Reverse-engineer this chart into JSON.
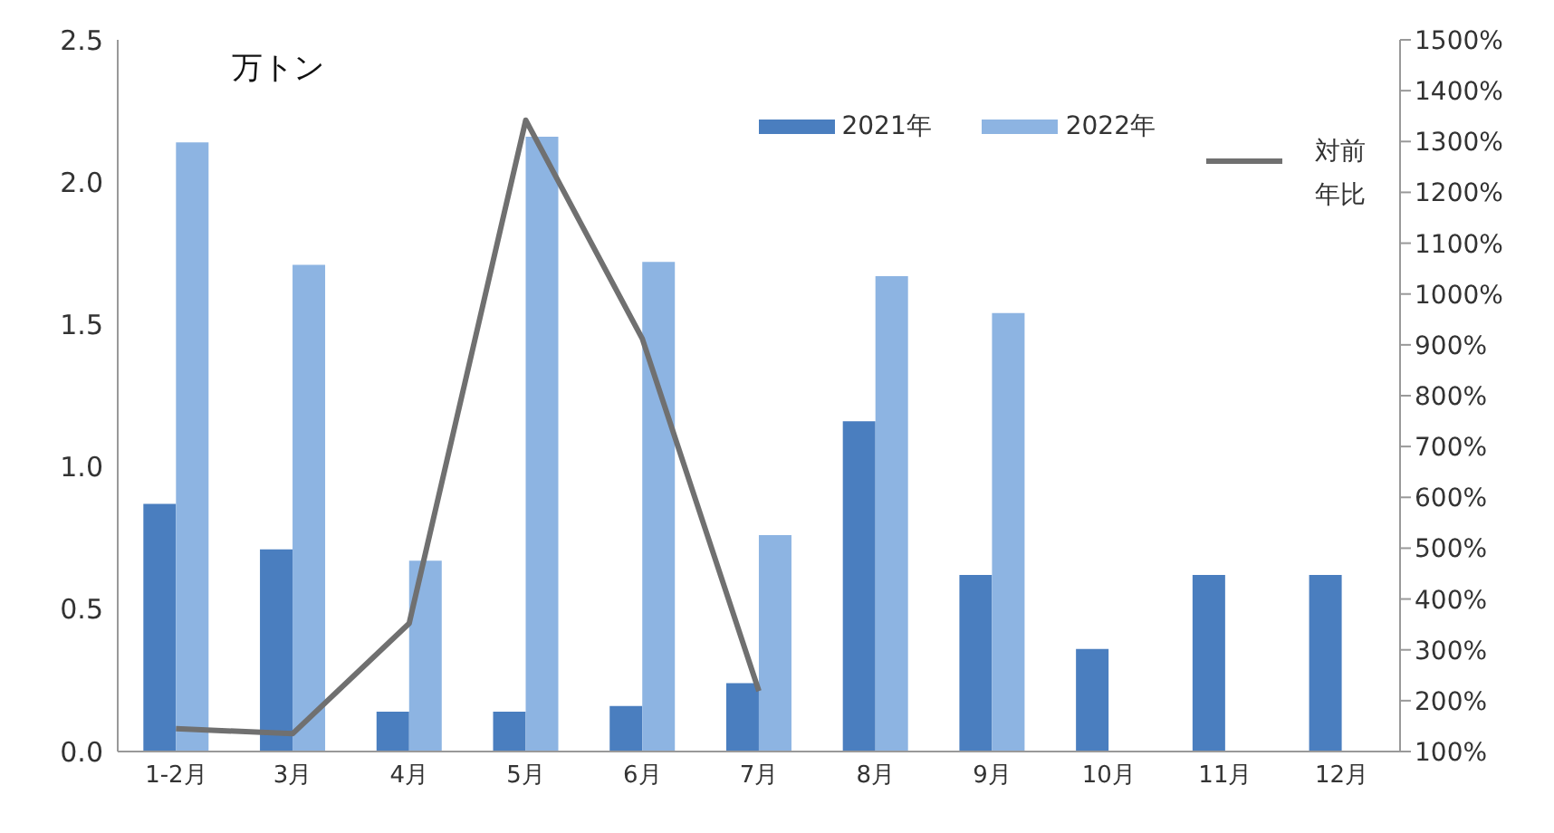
{
  "chart_data": {
    "type": "bar",
    "ylabel": "万トン",
    "categories": [
      "1-2月",
      "3月",
      "4月",
      "5月",
      "6月",
      "7月",
      "8月",
      "9月",
      "10月",
      "11月",
      "12月"
    ],
    "series": [
      {
        "name": "2021年",
        "color": "#4a7ebf",
        "values": [
          0.87,
          0.71,
          0.14,
          0.14,
          0.16,
          0.24,
          1.16,
          0.62,
          0.36,
          0.62,
          0.62
        ]
      },
      {
        "name": "2022年",
        "color": "#8db4e2",
        "values": [
          2.14,
          1.71,
          0.67,
          2.16,
          1.72,
          0.76,
          1.67,
          1.54,
          null,
          null,
          null
        ]
      },
      {
        "name": "対前年比",
        "type": "line",
        "axis": "y2",
        "color": "#707070",
        "values": [
          145,
          135,
          352,
          1342,
          912,
          219,
          null,
          null,
          null,
          null,
          null
        ]
      }
    ],
    "ylim": [
      0,
      2.5
    ],
    "yticks": [
      {
        "value": 0,
        "label": "0.0"
      },
      0.5,
      {
        "value": 1,
        "label": "1.0"
      },
      1.5,
      {
        "value": 2,
        "label": "2.0"
      },
      2.5
    ],
    "y2lim": [
      100,
      1500
    ],
    "y2ticks": [
      {
        "value": 100,
        "label": "100%"
      },
      {
        "value": 200,
        "label": "200%"
      },
      {
        "value": 300,
        "label": "300%"
      },
      {
        "value": 400,
        "label": "400%"
      },
      {
        "value": 500,
        "label": "500%"
      },
      {
        "value": 600,
        "label": "600%"
      },
      {
        "value": 700,
        "label": "700%"
      },
      {
        "value": 800,
        "label": "800%"
      },
      {
        "value": 900,
        "label": "900%"
      },
      {
        "value": 1000,
        "label": "1000%"
      },
      {
        "value": 1100,
        "label": "1100%"
      },
      {
        "value": 1200,
        "label": "1200%"
      },
      {
        "value": 1300,
        "label": "1300%"
      },
      {
        "value": 1400,
        "label": "1400%"
      },
      {
        "value": 1500,
        "label": "1500%"
      }
    ],
    "grid": false,
    "legend": "top right",
    "marker": "none",
    "line_style": "solid"
  }
}
